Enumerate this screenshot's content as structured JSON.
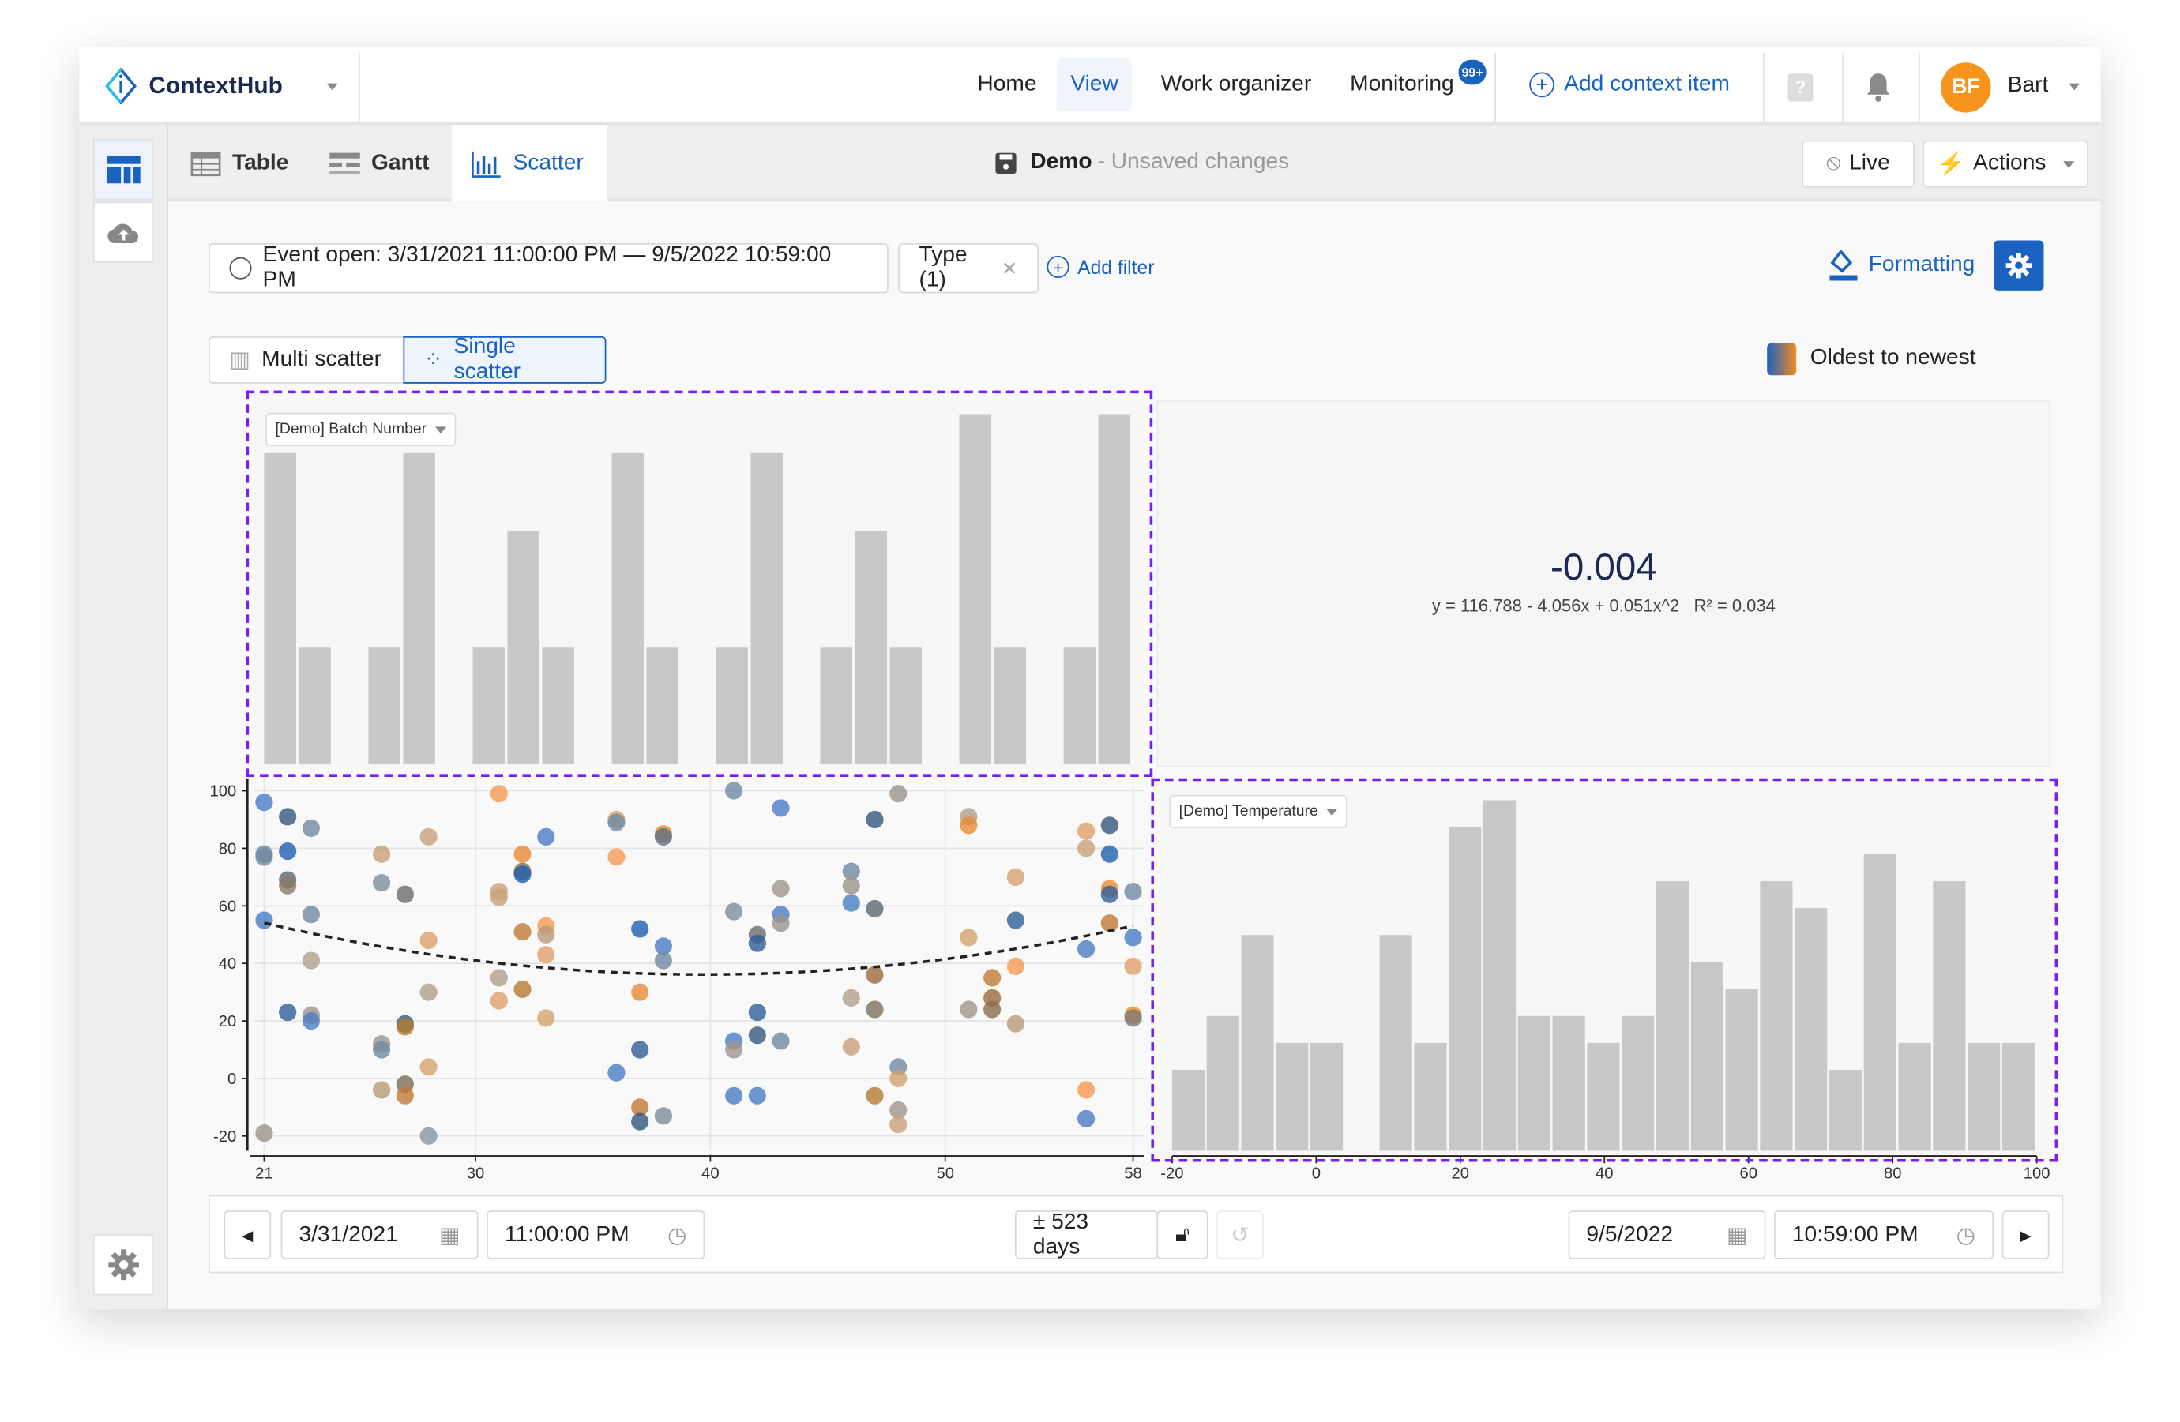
{
  "header": {
    "logo": "ContextHub",
    "nav": [
      "Home",
      "View",
      "Work organizer",
      "Monitoring"
    ],
    "monitoring_badge": "99+",
    "add_context": "Add context item",
    "avatar_initials": "BF",
    "user": "Bart"
  },
  "tabs": [
    "Table",
    "Gantt",
    "Scatter"
  ],
  "doc": {
    "name": "Demo",
    "status": "- Unsaved changes"
  },
  "toolbar": {
    "live": "Live",
    "actions": "Actions"
  },
  "filters": {
    "event": "Event open: 3/31/2021 11:00:00 PM — 9/5/2022 10:59:00 PM",
    "type": "Type (1)",
    "add": "Add filter",
    "formatting": "Formatting"
  },
  "modes": [
    "Multi scatter",
    "Single scatter"
  ],
  "legend": {
    "label": "Oldest to newest",
    "colors": [
      "#1a62c0",
      "#f58a1f"
    ]
  },
  "stats": {
    "value": "-0.004",
    "equation": "y = 116.788 - 4.056x + 0.051x^2",
    "r2": "R² = 0.034"
  },
  "timebar": {
    "start_date": "3/31/2021",
    "start_time": "11:00:00 PM",
    "range": "± 523 days",
    "end_date": "9/5/2022",
    "end_time": "10:59:00 PM"
  },
  "colors": {
    "accent": "#1a62c0",
    "selection": "#7a1cf5",
    "avatar": "#f7941d",
    "bar": "#c8c8c8"
  },
  "chart_data": [
    {
      "type": "scatter",
      "x_label_select": "[Demo] Batch Number",
      "y_label_select": "[Demo] Temperature",
      "xlim": [
        21,
        58
      ],
      "ylim": [
        -20,
        100
      ],
      "x_ticks": [
        "21",
        "30",
        "40",
        "50",
        "58"
      ],
      "y_ticks": [
        "100",
        "80",
        "60",
        "40",
        "20",
        "0",
        "-20"
      ],
      "grid": true,
      "trendline": {
        "a": 116.788,
        "b": -4.056,
        "c": 0.051
      },
      "points": [
        [
          21,
          96,
          "#4a7cc4"
        ],
        [
          21,
          78,
          "#6f8aa3"
        ],
        [
          21,
          77,
          "#6f8aa3"
        ],
        [
          21,
          55,
          "#4a7cc4"
        ],
        [
          21,
          -19,
          "#9a948c"
        ],
        [
          22,
          91,
          "#35587e"
        ],
        [
          22,
          79,
          "#1f5fb0"
        ],
        [
          22,
          69,
          "#5b6570"
        ],
        [
          22,
          67,
          "#8c7b68"
        ],
        [
          22,
          23,
          "#2f5f99"
        ],
        [
          23,
          87,
          "#6f8aa3"
        ],
        [
          23,
          57,
          "#6f8aa3"
        ],
        [
          23,
          41,
          "#b0a08c"
        ],
        [
          23,
          22,
          "#9a948c"
        ],
        [
          23,
          20,
          "#4a7cc4"
        ],
        [
          26,
          78,
          "#c9a07a"
        ],
        [
          26,
          68,
          "#7f8c99"
        ],
        [
          26,
          12,
          "#9a948c"
        ],
        [
          26,
          10,
          "#6f8aa3"
        ],
        [
          26,
          -4,
          "#b89a78"
        ],
        [
          27,
          64,
          "#6b6b6b"
        ],
        [
          27,
          19,
          "#35587e"
        ],
        [
          27,
          18,
          "#b5792f"
        ],
        [
          27,
          -2,
          "#7d6a55"
        ],
        [
          27,
          -6,
          "#c07a35"
        ],
        [
          28,
          84,
          "#c9a07a"
        ],
        [
          28,
          48,
          "#dfa06a"
        ],
        [
          28,
          30,
          "#b0a08c"
        ],
        [
          28,
          4,
          "#d4a26e"
        ],
        [
          28,
          -20,
          "#8a949e"
        ],
        [
          31,
          99,
          "#f59a52"
        ],
        [
          31,
          65,
          "#c9a07a"
        ],
        [
          31,
          63,
          "#c9a07a"
        ],
        [
          31,
          35,
          "#b0a08c"
        ],
        [
          31,
          27,
          "#e0a06a"
        ],
        [
          32,
          78,
          "#e88a33"
        ],
        [
          32,
          72,
          "#8c6b4a"
        ],
        [
          32,
          71,
          "#1f5fb0"
        ],
        [
          32,
          51,
          "#c07a35"
        ],
        [
          32,
          31,
          "#b5792f"
        ],
        [
          33,
          84,
          "#4a7cc4"
        ],
        [
          33,
          53,
          "#f59a52"
        ],
        [
          33,
          50,
          "#b89a78"
        ],
        [
          33,
          43,
          "#e0a06a"
        ],
        [
          33,
          21,
          "#d4a26e"
        ],
        [
          36,
          90,
          "#d4a26e"
        ],
        [
          36,
          89,
          "#6f8aa3"
        ],
        [
          36,
          77,
          "#f59a52"
        ],
        [
          36,
          2,
          "#4a7cc4"
        ],
        [
          37,
          52,
          "#1f5fb0"
        ],
        [
          37,
          30,
          "#e88a33"
        ],
        [
          37,
          10,
          "#2f5f99"
        ],
        [
          37,
          -10,
          "#c07a35"
        ],
        [
          37,
          -15,
          "#35587e"
        ],
        [
          38,
          85,
          "#e88a33"
        ],
        [
          38,
          84,
          "#5a6f85"
        ],
        [
          38,
          46,
          "#4a7cc4"
        ],
        [
          38,
          41,
          "#6f8aa3"
        ],
        [
          38,
          -13,
          "#7f8c99"
        ],
        [
          41,
          100,
          "#6f8aa3"
        ],
        [
          41,
          58,
          "#7f8c99"
        ],
        [
          41,
          13,
          "#4a7cc4"
        ],
        [
          41,
          10,
          "#a0968a"
        ],
        [
          41,
          -6,
          "#4a7cc4"
        ],
        [
          42,
          50,
          "#6b6b6b"
        ],
        [
          42,
          47,
          "#2f5f99"
        ],
        [
          42,
          23,
          "#2f5f99"
        ],
        [
          42,
          15,
          "#35587e"
        ],
        [
          42,
          -6,
          "#4a7cc4"
        ],
        [
          43,
          94,
          "#4a7cc4"
        ],
        [
          43,
          66,
          "#a0968a"
        ],
        [
          43,
          57,
          "#4a7cc4"
        ],
        [
          43,
          54,
          "#9a948c"
        ],
        [
          43,
          13,
          "#6f8aa3"
        ],
        [
          46,
          72,
          "#6f8aa3"
        ],
        [
          46,
          67,
          "#9a948c"
        ],
        [
          46,
          61,
          "#4a7cc4"
        ],
        [
          46,
          28,
          "#b0a08c"
        ],
        [
          46,
          11,
          "#c9a07a"
        ],
        [
          47,
          90,
          "#35587e"
        ],
        [
          47,
          59,
          "#5b6570"
        ],
        [
          47,
          36,
          "#9a6b3f"
        ],
        [
          47,
          24,
          "#7d705f"
        ],
        [
          47,
          -6,
          "#b5792f"
        ],
        [
          48,
          99,
          "#9a948c"
        ],
        [
          48,
          4,
          "#6f8aa3"
        ],
        [
          48,
          0,
          "#d4a26e"
        ],
        [
          48,
          -11,
          "#a0968a"
        ],
        [
          48,
          -16,
          "#c9a07a"
        ],
        [
          51,
          91,
          "#b0a08c"
        ],
        [
          51,
          88,
          "#e88a33"
        ],
        [
          51,
          49,
          "#d4a26e"
        ],
        [
          51,
          24,
          "#a0968a"
        ],
        [
          52,
          35,
          "#c07a35"
        ],
        [
          52,
          28,
          "#9a6b3f"
        ],
        [
          52,
          24,
          "#8c6b4a"
        ],
        [
          53,
          70,
          "#d4a26e"
        ],
        [
          53,
          55,
          "#2f5f99"
        ],
        [
          53,
          39,
          "#f59a52"
        ],
        [
          53,
          19,
          "#b89a78"
        ],
        [
          56,
          86,
          "#e0a06a"
        ],
        [
          56,
          80,
          "#c9a07a"
        ],
        [
          56,
          45,
          "#4a7cc4"
        ],
        [
          56,
          -4,
          "#f59a52"
        ],
        [
          56,
          -14,
          "#4a7cc4"
        ],
        [
          57,
          88,
          "#35587e"
        ],
        [
          57,
          78,
          "#1f5fb0"
        ],
        [
          57,
          66,
          "#e88a33"
        ],
        [
          57,
          64,
          "#2f5f99"
        ],
        [
          57,
          54,
          "#c07a35"
        ],
        [
          58,
          65,
          "#6f8aa3"
        ],
        [
          58,
          49,
          "#4a7cc4"
        ],
        [
          58,
          39,
          "#e0a06a"
        ],
        [
          58,
          22,
          "#f58a1f"
        ],
        [
          58,
          21,
          "#7b7b7b"
        ]
      ]
    },
    {
      "type": "bar",
      "label": "[Demo] Batch Number",
      "orientation": "histogram",
      "xlim": [
        21,
        58
      ],
      "values": [
        8,
        3,
        0,
        3,
        8,
        0,
        3,
        6,
        3,
        0,
        8,
        3,
        0,
        3,
        8,
        0,
        3,
        6,
        3,
        0,
        9,
        3,
        0,
        3,
        9
      ]
    },
    {
      "type": "bar",
      "label": "[Demo] Temperature",
      "orientation": "histogram",
      "xlim": [
        -20,
        100
      ],
      "x_ticks": [
        "-20",
        "0",
        "20",
        "40",
        "60",
        "80",
        "100"
      ],
      "values": [
        3,
        5,
        8,
        4,
        4,
        0,
        8,
        4,
        12,
        13,
        5,
        5,
        4,
        5,
        10,
        7,
        6,
        10,
        9,
        3,
        11,
        4,
        10,
        4,
        4
      ]
    }
  ]
}
